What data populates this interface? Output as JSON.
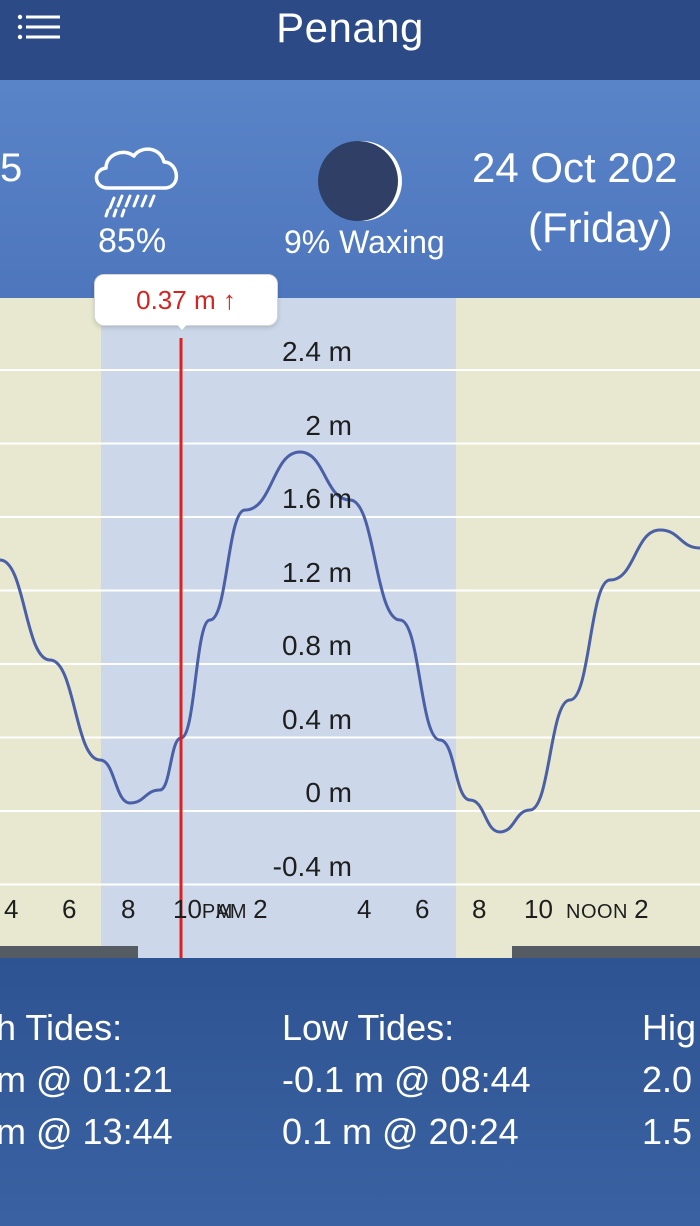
{
  "header": {
    "title": "Penang",
    "menu_icon": "hamburger-menu-icon"
  },
  "info": {
    "left_partial": "5",
    "rain_icon": "rain-cloud-icon",
    "rain_chance": "85%",
    "moon_icon": "moon-phase-icon",
    "moon_phase": "9% Waxing",
    "date": "24 Oct 202",
    "weekday": "(Friday)"
  },
  "chart": {
    "y_labels": [
      "2.4 m",
      "2 m",
      "1.6 m",
      "1.2 m",
      "0.8 m",
      "0.4 m",
      "0 m",
      "-0.4 m"
    ],
    "x_labels": [
      {
        "num": "4",
        "suffix": ""
      },
      {
        "num": "6",
        "suffix": ""
      },
      {
        "num": "8",
        "suffix": ""
      },
      {
        "num": "10",
        "suffix": "PM"
      },
      {
        "num": "2",
        "prefix": "AM"
      },
      {
        "num": "4",
        "suffix": ""
      },
      {
        "num": "6",
        "suffix": ""
      },
      {
        "num": "8",
        "suffix": ""
      },
      {
        "num": "10",
        "suffix": ""
      },
      {
        "num": "2",
        "prefix": "NOON"
      }
    ],
    "cursor_value": "0.37 m",
    "cursor_arrow": "↑",
    "colors": {
      "day": "#e7e8cf",
      "night": "#ccd8ea",
      "curve": "#4a5fa6",
      "cursor": "#e02020"
    }
  },
  "chart_data": {
    "type": "line",
    "title": "",
    "xlabel": "",
    "ylabel": "",
    "ylim": [
      -0.4,
      2.4
    ],
    "x": [
      "16:00",
      "18:00",
      "20:24",
      "22:00",
      "01:21",
      "04:00",
      "08:44",
      "10:00",
      "12:00",
      "13:44"
    ],
    "series": [
      {
        "values": [
          1.2,
          0.4,
          0.1,
          0.37,
          2.0,
          1.0,
          -0.1,
          0.5,
          1.2,
          1.5
        ]
      }
    ]
  },
  "tides": {
    "high_title": "h Tides:",
    "high_1": "m @ 01:21",
    "high_2": "m @ 13:44",
    "low_title": "Low Tides:",
    "low_1": "-0.1 m @ 08:44",
    "low_2": "0.1 m @ 20:24",
    "right_title": "Hig",
    "right_1": "2.0",
    "right_2": "1.5"
  }
}
